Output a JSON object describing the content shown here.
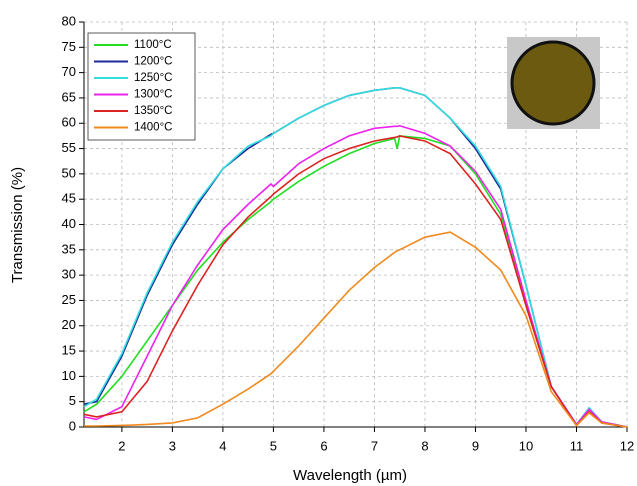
{
  "chart_data": {
    "type": "line",
    "x_label": "Wavelength (µm)",
    "y_label": "Transmission (%)",
    "x": [
      1.25,
      1.5,
      2,
      2.5,
      3,
      3.5,
      4,
      4.5,
      4.95,
      5,
      5.5,
      6,
      6.5,
      7,
      7.4,
      7.45,
      7.5,
      8,
      8.5,
      9,
      9.5,
      10,
      10.5,
      11,
      11.25,
      11.5,
      12
    ],
    "series": [
      {
        "name": "1100°C",
        "color": "#22dd22",
        "values": [
          3,
          4.5,
          10,
          17,
          24,
          31,
          36.5,
          41,
          44.5,
          45,
          48.5,
          51.5,
          54,
          56,
          57,
          55,
          57.5,
          57,
          55.5,
          50,
          42,
          24,
          8,
          0.5,
          3.5,
          1,
          0
        ]
      },
      {
        "name": "1200°C",
        "color": "#1a2a9a",
        "values": [
          4.5,
          5,
          14,
          26,
          36,
          44,
          51,
          55,
          57.8,
          58,
          61,
          63.5,
          65.5,
          66.5,
          67,
          67,
          67,
          65.5,
          61,
          55,
          47,
          28,
          8,
          0.5,
          3.5,
          1,
          0
        ]
      },
      {
        "name": "1250°C",
        "color": "#33dddd",
        "values": [
          4,
          5.5,
          14.5,
          26.5,
          36.5,
          44.5,
          51,
          55.5,
          57.5,
          58,
          61,
          63.5,
          65.5,
          66.5,
          67,
          67,
          67,
          65.5,
          61,
          55.5,
          47.5,
          28,
          8,
          0.5,
          3.8,
          1,
          0
        ]
      },
      {
        "name": "1300°C",
        "color": "#ee22ee",
        "values": [
          2,
          1.5,
          4,
          14,
          24,
          32,
          39,
          44,
          48,
          47.5,
          52,
          55,
          57.5,
          59,
          59.4,
          59.4,
          59.5,
          58,
          55.5,
          50.5,
          43,
          25,
          8,
          0.5,
          3.5,
          1,
          0
        ]
      },
      {
        "name": "1350°C",
        "color": "#dd2222",
        "values": [
          2.5,
          2,
          3,
          9,
          19,
          28,
          36,
          41.5,
          45.5,
          46,
          50,
          53,
          55,
          56.5,
          57.2,
          57.3,
          57.5,
          56.5,
          54,
          48,
          41,
          24,
          8,
          0.3,
          3,
          0.8,
          0
        ]
      },
      {
        "name": "1400°C",
        "color": "#f08a1e",
        "values": [
          0.2,
          0.2,
          0.3,
          0.5,
          0.8,
          1.8,
          4.5,
          7.5,
          10.5,
          11,
          16,
          21.5,
          27,
          31.5,
          34.5,
          34.8,
          35,
          37.5,
          38.5,
          35.5,
          31,
          22,
          7,
          0.3,
          2.8,
          0.8,
          0
        ]
      }
    ],
    "xlim": [
      1.25,
      12
    ],
    "xticks": [
      2,
      3,
      4,
      5,
      6,
      7,
      8,
      9,
      10,
      11,
      12
    ],
    "ylim": [
      0,
      80
    ],
    "yticks": [
      0,
      5,
      10,
      15,
      20,
      25,
      30,
      35,
      40,
      45,
      50,
      55,
      60,
      65,
      70,
      75,
      80
    ],
    "grid": true
  }
}
